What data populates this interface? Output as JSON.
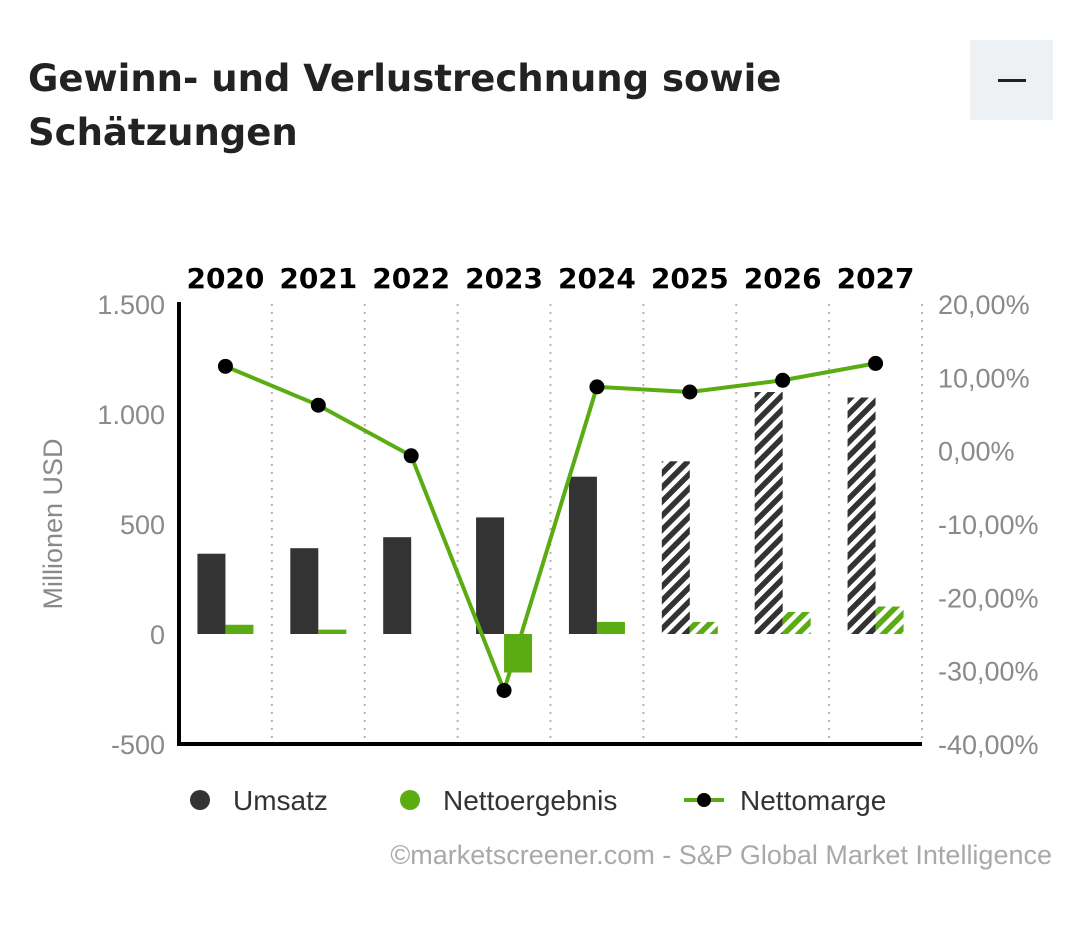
{
  "header": {
    "title": "Gewinn- und Verlustrechnung sowie Schätzungen",
    "collapse_icon": "minus-icon"
  },
  "credit": "©marketscreener.com - S&P Global Market Intelligence",
  "colors": {
    "revenue": "#333333",
    "net_income": "#5aac12",
    "margin_line": "#5aac12",
    "margin_marker": "#000000",
    "axis_text": "#8a8a8a",
    "year_text": "#000000"
  },
  "chart_data": {
    "type": "bar",
    "title": "Gewinn- und Verlustrechnung sowie Schätzungen",
    "ylabel": "Millionen USD",
    "ylim": [
      -500,
      1500
    ],
    "y_ticks": [
      -500,
      0,
      500,
      1000,
      1500
    ],
    "y_tick_labels": [
      "-500",
      "0",
      "500",
      "1.000",
      "1.500"
    ],
    "y2lim": [
      -40,
      20
    ],
    "y2_ticks": [
      -40,
      -30,
      -20,
      -10,
      0,
      10,
      20
    ],
    "y2_tick_labels": [
      "-40,00%",
      "-30,00%",
      "-20,00%",
      "-10,00%",
      "0,00%",
      "10,00%",
      "20,00%"
    ],
    "categories": [
      "2020",
      "2021",
      "2022",
      "2023",
      "2024",
      "2025",
      "2026",
      "2027"
    ],
    "estimate_from_index": 5,
    "legend_position": "bottom",
    "series": [
      {
        "name": "Umsatz",
        "type": "bar",
        "axis": "left",
        "values": [
          365,
          390,
          440,
          530,
          715,
          785,
          1100,
          1075
        ]
      },
      {
        "name": "Nettoergebnis",
        "type": "bar",
        "axis": "left",
        "values": [
          42,
          20,
          0,
          -175,
          55,
          55,
          100,
          125
        ]
      },
      {
        "name": "Nettomarge",
        "type": "line",
        "axis": "right",
        "values": [
          11.5,
          6.2,
          -0.7,
          -32.7,
          8.7,
          8.0,
          9.6,
          11.9
        ]
      }
    ]
  }
}
